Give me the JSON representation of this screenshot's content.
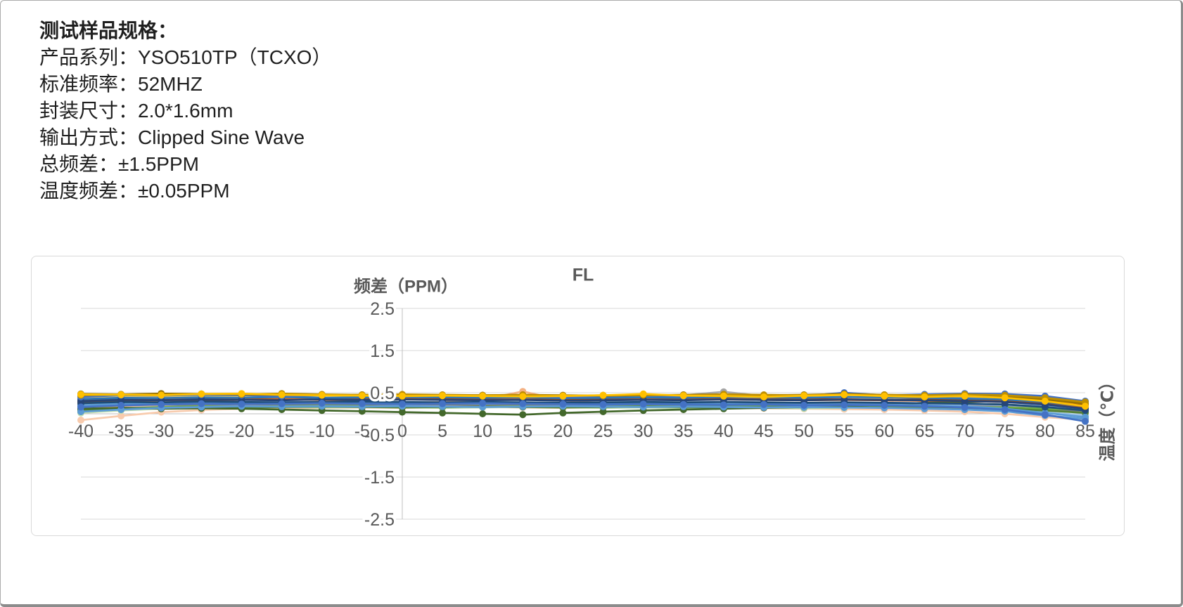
{
  "page": {
    "spec": {
      "heading": "测试样品规格：",
      "lines": [
        "产品系列：YSO510TP（TCXO）",
        "标准频率：52MHZ",
        "封装尺寸：2.0*1.6mm",
        "输出方式：Clipped Sine Wave",
        "总频差：±1.5PPM",
        "温度频差：±0.05PPM"
      ]
    }
  },
  "colors": {
    "tick_text": "#595959",
    "title_text": "#595959",
    "gridline": "#d9d9d9",
    "axis_line": "#bfbfbf",
    "chart_border": "#d9d9d9",
    "spec_text": "#1f1f1f"
  },
  "chart_data": {
    "type": "line",
    "title": "FL",
    "y_axis_label": "频差（PPM）",
    "x_axis_label": "温度（℃）",
    "legend": "none",
    "grid": true,
    "marker": "circle",
    "xlim": [
      -40,
      85
    ],
    "ylim": [
      -2.5,
      2.5
    ],
    "x": [
      -40,
      -35,
      -30,
      -25,
      -20,
      -15,
      -10,
      -5,
      0,
      5,
      10,
      15,
      20,
      25,
      30,
      35,
      40,
      45,
      50,
      55,
      60,
      65,
      70,
      75,
      80,
      85
    ],
    "y_ticks": [
      2.5,
      1.5,
      0.5,
      -0.5,
      -1.5,
      -2.5
    ],
    "series": [
      {
        "color": "#F8CBAD",
        "values": [
          -0.15,
          -0.05,
          0.04,
          0.09,
          0.12,
          0.13,
          0.14,
          0.15,
          0.14,
          0.15,
          0.16,
          0.15,
          0.14,
          0.15,
          0.16,
          0.15,
          0.14,
          0.13,
          0.12,
          0.11,
          0.1,
          0.08,
          0.05,
          0.0,
          -0.08,
          -0.14
        ]
      },
      {
        "color": "#F4B183",
        "values": [
          0.14,
          0.17,
          0.2,
          0.22,
          0.21,
          0.22,
          0.23,
          0.24,
          0.26,
          0.28,
          0.34,
          0.53,
          0.32,
          0.25,
          0.23,
          0.24,
          0.25,
          0.24,
          0.23,
          0.24,
          0.23,
          0.22,
          0.21,
          0.19,
          0.14,
          0.08
        ]
      },
      {
        "color": "#FFE699",
        "values": [
          0.36,
          0.38,
          0.37,
          0.39,
          0.38,
          0.4,
          0.39,
          0.38,
          0.39,
          0.38,
          0.37,
          0.38,
          0.36,
          0.37,
          0.38,
          0.37,
          0.38,
          0.37,
          0.36,
          0.37,
          0.36,
          0.35,
          0.36,
          0.34,
          0.28,
          0.2
        ]
      },
      {
        "color": "#FFD966",
        "values": [
          0.4,
          0.42,
          0.41,
          0.43,
          0.42,
          0.44,
          0.42,
          0.41,
          0.4,
          0.41,
          0.4,
          0.39,
          0.4,
          0.41,
          0.4,
          0.39,
          0.4,
          0.41,
          0.42,
          0.4,
          0.38,
          0.4,
          0.42,
          0.4,
          0.34,
          0.26
        ]
      },
      {
        "color": "#C5E0B4",
        "values": [
          0.02,
          0.08,
          0.12,
          0.14,
          0.15,
          0.16,
          0.15,
          0.16,
          0.15,
          0.14,
          0.15,
          0.16,
          0.15,
          0.14,
          0.15,
          0.14,
          0.15,
          0.14,
          0.13,
          0.14,
          0.15,
          0.14,
          0.13,
          0.12,
          0.1,
          0.06
        ]
      },
      {
        "color": "#A9D18E",
        "values": [
          0.06,
          0.1,
          0.13,
          0.15,
          0.16,
          0.17,
          0.16,
          0.17,
          0.16,
          0.15,
          0.16,
          0.17,
          0.16,
          0.15,
          0.16,
          0.15,
          0.16,
          0.15,
          0.14,
          0.15,
          0.16,
          0.15,
          0.14,
          0.13,
          0.11,
          0.07
        ]
      },
      {
        "color": "#B4C7E7",
        "values": [
          0.22,
          0.24,
          0.23,
          0.25,
          0.24,
          0.23,
          0.24,
          0.25,
          0.24,
          0.23,
          0.24,
          0.23,
          0.22,
          0.23,
          0.24,
          0.23,
          0.22,
          0.23,
          0.22,
          0.21,
          0.22,
          0.21,
          0.2,
          0.18,
          0.14,
          0.06
        ]
      },
      {
        "color": "#8FAADC",
        "values": [
          0.28,
          0.27,
          0.28,
          0.26,
          0.27,
          0.28,
          0.27,
          0.26,
          0.27,
          0.26,
          0.25,
          0.26,
          0.24,
          0.26,
          0.27,
          0.26,
          0.25,
          0.26,
          0.24,
          0.25,
          0.26,
          0.25,
          0.24,
          0.22,
          0.18,
          0.12
        ]
      },
      {
        "color": "#9DC3E6",
        "values": [
          0.1,
          0.14,
          0.16,
          0.18,
          0.17,
          0.18,
          0.17,
          0.18,
          0.19,
          0.18,
          0.17,
          0.16,
          0.17,
          0.16,
          0.17,
          0.18,
          0.17,
          0.16,
          0.15,
          0.16,
          0.15,
          0.14,
          0.12,
          0.1,
          0.04,
          -0.04
        ]
      },
      {
        "color": "#7F7F7F",
        "values": [
          0.18,
          0.2,
          0.22,
          0.21,
          0.23,
          0.22,
          0.21,
          0.22,
          0.23,
          0.22,
          0.21,
          0.22,
          0.2,
          0.21,
          0.22,
          0.21,
          0.22,
          0.21,
          0.2,
          0.21,
          0.2,
          0.19,
          0.18,
          0.16,
          0.12,
          0.06
        ]
      },
      {
        "color": "#A5A5A5",
        "values": [
          0.32,
          0.34,
          0.33,
          0.35,
          0.34,
          0.36,
          0.34,
          0.35,
          0.36,
          0.35,
          0.36,
          0.34,
          0.38,
          0.36,
          0.4,
          0.44,
          0.52,
          0.42,
          0.36,
          0.35,
          0.34,
          0.33,
          0.4,
          0.34,
          0.3,
          0.26
        ]
      },
      {
        "color": "#636363",
        "values": [
          0.33,
          0.35,
          0.34,
          0.36,
          0.35,
          0.34,
          0.35,
          0.36,
          0.35,
          0.34,
          0.35,
          0.34,
          0.33,
          0.34,
          0.35,
          0.34,
          0.35,
          0.34,
          0.33,
          0.34,
          0.33,
          0.32,
          0.31,
          0.3,
          0.26,
          0.2
        ]
      },
      {
        "color": "#70AD47",
        "values": [
          0.05,
          0.12,
          0.16,
          0.18,
          0.17,
          0.18,
          0.19,
          0.18,
          0.17,
          0.16,
          0.17,
          0.18,
          0.16,
          0.17,
          0.18,
          0.17,
          0.18,
          0.17,
          0.16,
          0.17,
          0.18,
          0.17,
          0.16,
          0.15,
          0.12,
          0.1
        ]
      },
      {
        "color": "#548235",
        "values": [
          0.08,
          0.12,
          0.14,
          0.16,
          0.15,
          0.16,
          0.17,
          0.16,
          0.15,
          0.16,
          0.17,
          0.16,
          0.15,
          0.16,
          0.17,
          0.16,
          0.15,
          0.16,
          0.17,
          0.16,
          0.15,
          0.14,
          0.13,
          0.12,
          0.08,
          0.02
        ]
      },
      {
        "color": "#43682B",
        "values": [
          0.12,
          0.14,
          0.12,
          0.13,
          0.12,
          0.1,
          0.08,
          0.06,
          0.04,
          0.02,
          0.0,
          -0.02,
          0.02,
          0.05,
          0.08,
          0.1,
          0.12,
          0.14,
          0.16,
          0.18,
          0.22,
          0.26,
          0.28,
          0.3,
          0.31,
          0.29
        ]
      },
      {
        "color": "#ED7D31",
        "values": [
          0.25,
          0.28,
          0.32,
          0.3,
          0.33,
          0.35,
          0.33,
          0.32,
          0.35,
          0.33,
          0.34,
          0.36,
          0.33,
          0.32,
          0.34,
          0.33,
          0.35,
          0.34,
          0.33,
          0.35,
          0.32,
          0.31,
          0.33,
          0.32,
          0.28,
          0.22
        ]
      },
      {
        "color": "#C55A11",
        "values": [
          0.3,
          0.32,
          0.34,
          0.33,
          0.35,
          0.34,
          0.33,
          0.34,
          0.35,
          0.34,
          0.33,
          0.34,
          0.32,
          0.33,
          0.34,
          0.33,
          0.34,
          0.33,
          0.32,
          0.33,
          0.32,
          0.31,
          0.3,
          0.28,
          0.24,
          0.16
        ]
      },
      {
        "color": "#9E480E",
        "values": [
          0.28,
          0.3,
          0.33,
          0.32,
          0.34,
          0.33,
          0.34,
          0.33,
          0.34,
          0.35,
          0.34,
          0.33,
          0.35,
          0.34,
          0.33,
          0.34,
          0.35,
          0.34,
          0.35,
          0.34,
          0.33,
          0.34,
          0.32,
          0.3,
          0.26,
          0.2
        ]
      },
      {
        "color": "#5B9BD5",
        "values": [
          0.2,
          0.24,
          0.25,
          0.26,
          0.25,
          0.27,
          0.26,
          0.25,
          0.26,
          0.25,
          0.24,
          0.25,
          0.23,
          0.24,
          0.25,
          0.24,
          0.23,
          0.24,
          0.22,
          0.23,
          0.22,
          0.2,
          0.18,
          0.12,
          0.02,
          -0.08
        ]
      },
      {
        "color": "#5B9BD5",
        "values": [
          0.05,
          0.1,
          0.14,
          0.16,
          0.18,
          0.17,
          0.18,
          0.17,
          0.18,
          0.17,
          0.16,
          0.17,
          0.18,
          0.17,
          0.16,
          0.17,
          0.16,
          0.15,
          0.16,
          0.15,
          0.14,
          0.12,
          0.1,
          0.06,
          -0.04,
          -0.12
        ]
      },
      {
        "color": "#2E75B6",
        "values": [
          0.35,
          0.38,
          0.37,
          0.39,
          0.38,
          0.4,
          0.38,
          0.39,
          0.4,
          0.39,
          0.38,
          0.39,
          0.37,
          0.38,
          0.39,
          0.38,
          0.4,
          0.39,
          0.38,
          0.4,
          0.39,
          0.38,
          0.36,
          0.34,
          0.28,
          0.18
        ]
      },
      {
        "color": "#1F4E79",
        "values": [
          0.25,
          0.28,
          0.27,
          0.29,
          0.28,
          0.27,
          0.28,
          0.29,
          0.28,
          0.27,
          0.28,
          0.27,
          0.26,
          0.27,
          0.28,
          0.27,
          0.28,
          0.27,
          0.26,
          0.27,
          0.26,
          0.25,
          0.24,
          0.22,
          0.16,
          0.08
        ]
      },
      {
        "color": "#264478",
        "values": [
          0.3,
          0.33,
          0.32,
          0.34,
          0.33,
          0.32,
          0.34,
          0.33,
          0.34,
          0.33,
          0.32,
          0.33,
          0.31,
          0.32,
          0.33,
          0.32,
          0.34,
          0.33,
          0.32,
          0.34,
          0.33,
          0.32,
          0.3,
          0.28,
          0.22,
          0.12
        ]
      },
      {
        "color": "#4472C4",
        "values": [
          0.16,
          0.2,
          0.22,
          0.24,
          0.23,
          0.24,
          0.25,
          0.24,
          0.23,
          0.24,
          0.25,
          0.24,
          0.23,
          0.22,
          0.23,
          0.22,
          0.21,
          0.22,
          0.2,
          0.21,
          0.2,
          0.18,
          0.15,
          0.1,
          -0.02,
          -0.18
        ]
      },
      {
        "color": "#4472C4",
        "values": [
          0.4,
          0.44,
          0.43,
          0.45,
          0.44,
          0.42,
          0.44,
          0.45,
          0.44,
          0.43,
          0.44,
          0.42,
          0.4,
          0.42,
          0.44,
          0.42,
          0.45,
          0.44,
          0.42,
          0.5,
          0.44,
          0.46,
          0.48,
          0.47,
          0.42,
          0.3
        ]
      },
      {
        "color": "#997300",
        "values": [
          0.47,
          0.46,
          0.48,
          0.47,
          0.46,
          0.45,
          0.44,
          0.45,
          0.44,
          0.43,
          0.44,
          0.45,
          0.44,
          0.43,
          0.44,
          0.45,
          0.46,
          0.44,
          0.45,
          0.47,
          0.45,
          0.43,
          0.42,
          0.4,
          0.34,
          0.24
        ]
      },
      {
        "color": "#BF8F00",
        "values": [
          0.44,
          0.46,
          0.45,
          0.47,
          0.46,
          0.48,
          0.46,
          0.45,
          0.46,
          0.45,
          0.44,
          0.45,
          0.43,
          0.44,
          0.45,
          0.44,
          0.46,
          0.45,
          0.44,
          0.46,
          0.45,
          0.44,
          0.46,
          0.44,
          0.38,
          0.28
        ]
      },
      {
        "color": "#FFC000",
        "values": [
          0.46,
          0.45,
          0.44,
          0.47,
          0.48,
          0.45,
          0.44,
          0.43,
          0.42,
          0.43,
          0.42,
          0.41,
          0.42,
          0.44,
          0.47,
          0.43,
          0.42,
          0.4,
          0.43,
          0.45,
          0.42,
          0.4,
          0.42,
          0.38,
          0.3,
          0.18
        ]
      }
    ]
  }
}
